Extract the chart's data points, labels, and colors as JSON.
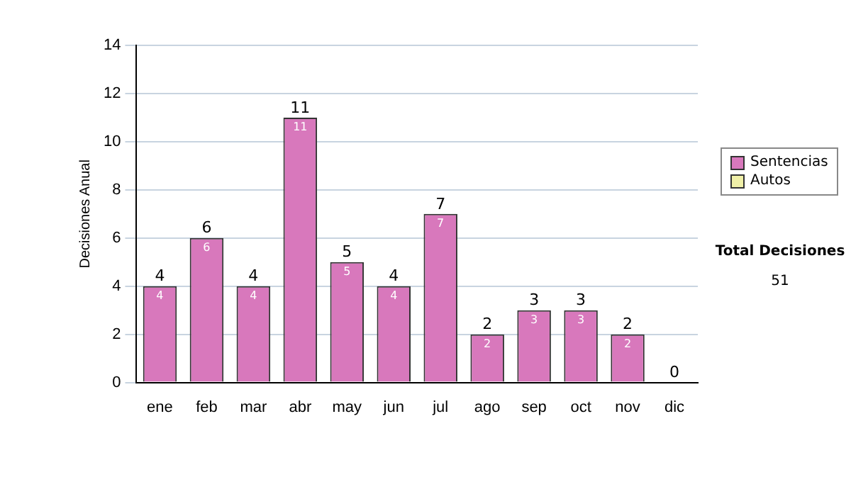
{
  "chart_data": {
    "type": "bar",
    "stacked": true,
    "ylabel": "Decisiones Anual",
    "categories": [
      "ene",
      "feb",
      "mar",
      "abr",
      "may",
      "jun",
      "jul",
      "ago",
      "sep",
      "oct",
      "nov",
      "dic"
    ],
    "series": [
      {
        "name": "Sentencias",
        "color": "#d878bc",
        "values": [
          4,
          6,
          4,
          11,
          5,
          4,
          7,
          2,
          3,
          3,
          2,
          0
        ],
        "value_labels": [
          "4",
          "6",
          "4",
          "11",
          "5",
          "4",
          "7",
          "2",
          "3",
          "3",
          "2",
          null
        ]
      },
      {
        "name": "Autos",
        "color": "#f0f0a8",
        "values": [
          0,
          0,
          0,
          0,
          0,
          0,
          0,
          0,
          0,
          0,
          0,
          0
        ]
      }
    ],
    "totals": [
      "4",
      "6",
      "4",
      "11",
      "5",
      "4",
      "7",
      "2",
      "3",
      "3",
      "2",
      "0"
    ],
    "ylim": [
      0,
      14
    ],
    "yticks": [
      0,
      2,
      4,
      6,
      8,
      10,
      12,
      14
    ],
    "grid": "y",
    "legend": "right",
    "annotations": [
      "Total Decisiones",
      "51"
    ]
  }
}
